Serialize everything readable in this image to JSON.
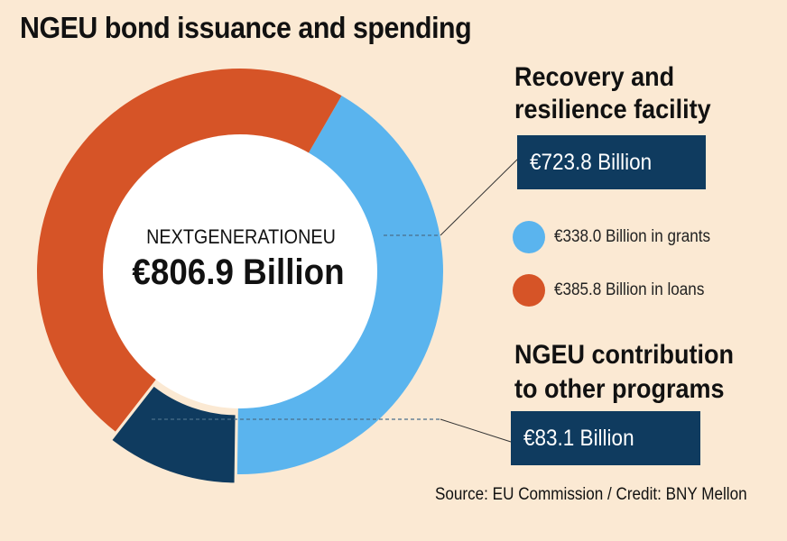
{
  "title": "NGEU bond issuance and spending",
  "center": {
    "label": "NEXTGENERATIONEU",
    "value": "€806.9 Billion"
  },
  "rrf": {
    "heading_line1": "Recovery and",
    "heading_line2": "resilience facility",
    "value": "€723.8 Billion"
  },
  "legend": [
    {
      "label": "€338.0 Billion in grants",
      "color": "#5ab4ee"
    },
    {
      "label": "€385.8 Billion in loans",
      "color": "#d65427"
    }
  ],
  "other": {
    "heading_line1": "NGEU contribution",
    "heading_line2": "to other programs",
    "value": "€83.1 Billion"
  },
  "source": "Source: EU Commission / Credit: BNY Mellon",
  "chart_data": {
    "type": "pie",
    "title": "NGEU bond issuance and spending",
    "total": 806.9,
    "unit": "€ Billion",
    "series": [
      {
        "name": "€338.0 Billion in grants",
        "value": 338.0,
        "color": "#5ab4ee"
      },
      {
        "name": "€83.1 Billion",
        "value": 83.1,
        "color": "#0f3b5f"
      },
      {
        "name": "€385.8 Billion in loans",
        "value": 385.8,
        "color": "#d65427"
      }
    ]
  }
}
